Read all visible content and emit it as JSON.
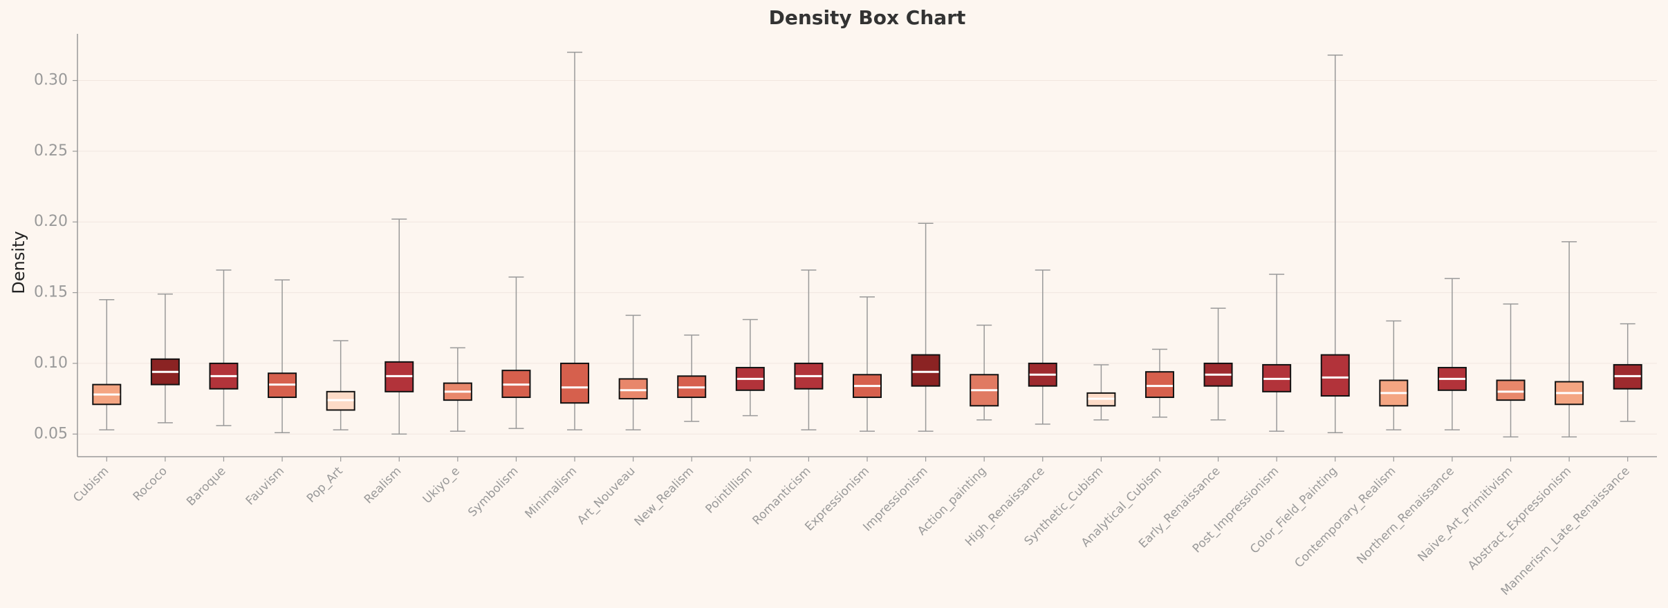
{
  "chart_data": {
    "type": "box",
    "title": "Density Box Chart",
    "y_label": "Density",
    "categories": [
      "Cubism",
      "Rococo",
      "Baroque",
      "Fauvism",
      "Pop_Art",
      "Realism",
      "Ukiyo_e",
      "Symbolism",
      "Minimalism",
      "Art_Nouveau",
      "New_Realism",
      "Pointillism",
      "Romanticism",
      "Expressionism",
      "Impressionism",
      "Action_painting",
      "High_Renaissance",
      "Synthetic_Cubism",
      "Analytical_Cubism",
      "Early_Renaissance",
      "Post_Impressionism",
      "Color_Field_Painting",
      "Contemporary_Realism",
      "Northern_Renaissance",
      "Naive_Art_Primitivism",
      "Abstract_Expressionism",
      "Mannerism_Late_Renaissance"
    ],
    "low": [
      0.053,
      0.058,
      0.056,
      0.051,
      0.053,
      0.05,
      0.052,
      0.054,
      0.053,
      0.053,
      0.059,
      0.063,
      0.053,
      0.052,
      0.052,
      0.06,
      0.057,
      0.06,
      0.062,
      0.06,
      0.052,
      0.051,
      0.053,
      0.053,
      0.048,
      0.048,
      0.059
    ],
    "q1": [
      0.071,
      0.085,
      0.082,
      0.076,
      0.067,
      0.08,
      0.074,
      0.076,
      0.072,
      0.075,
      0.076,
      0.081,
      0.082,
      0.076,
      0.084,
      0.07,
      0.084,
      0.07,
      0.076,
      0.084,
      0.08,
      0.077,
      0.07,
      0.081,
      0.074,
      0.071,
      0.082
    ],
    "median": [
      0.078,
      0.094,
      0.091,
      0.085,
      0.074,
      0.091,
      0.08,
      0.085,
      0.083,
      0.081,
      0.083,
      0.089,
      0.091,
      0.084,
      0.094,
      0.081,
      0.092,
      0.075,
      0.084,
      0.092,
      0.089,
      0.09,
      0.079,
      0.089,
      0.08,
      0.079,
      0.091
    ],
    "q3": [
      0.085,
      0.103,
      0.1,
      0.093,
      0.08,
      0.101,
      0.086,
      0.095,
      0.1,
      0.089,
      0.091,
      0.097,
      0.1,
      0.092,
      0.106,
      0.092,
      0.1,
      0.079,
      0.094,
      0.1,
      0.099,
      0.106,
      0.088,
      0.097,
      0.088,
      0.087,
      0.099
    ],
    "high": [
      0.145,
      0.149,
      0.166,
      0.159,
      0.116,
      0.202,
      0.111,
      0.161,
      0.32,
      0.134,
      0.12,
      0.131,
      0.166,
      0.147,
      0.199,
      0.127,
      0.166,
      0.099,
      0.11,
      0.139,
      0.163,
      0.318,
      0.13,
      0.16,
      0.142,
      0.186,
      0.128
    ],
    "colors": [
      "#f4a582",
      "#8b2323",
      "#b2333a",
      "#d6604d",
      "#fddbc7",
      "#b2333a",
      "#e8876b",
      "#d6604d",
      "#d6604d",
      "#e8876b",
      "#d6604d",
      "#b2333a",
      "#b2333a",
      "#d6604d",
      "#8b2323",
      "#e07a62",
      "#9e2a2e",
      "#fddbc7",
      "#d6604d",
      "#9e2a2e",
      "#b2333a",
      "#b2333a",
      "#f4a582",
      "#b2333a",
      "#e8876b",
      "#f4a582",
      "#9e2a2e"
    ],
    "ylim": [
      0.034,
      0.333
    ],
    "yticks": [
      {
        "value": 0.05,
        "label": "0.05"
      },
      {
        "value": 0.1,
        "label": "0.10"
      },
      {
        "value": 0.15,
        "label": "0.15"
      },
      {
        "value": 0.2,
        "label": "0.20"
      },
      {
        "value": 0.25,
        "label": "0.25"
      },
      {
        "value": 0.3,
        "label": "0.30"
      }
    ],
    "grid": true
  }
}
